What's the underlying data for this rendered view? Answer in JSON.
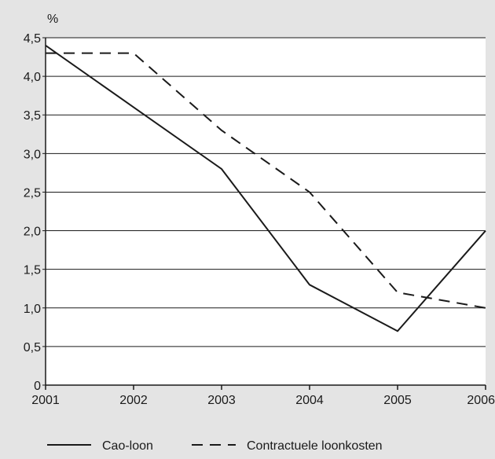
{
  "chart_data": {
    "type": "line",
    "title": "",
    "xlabel": "",
    "ylabel": "%",
    "x": [
      "2001",
      "2002",
      "2003",
      "2004",
      "2005",
      "2006"
    ],
    "ylim": [
      0,
      4.5
    ],
    "yticks": [
      0,
      0.5,
      1.0,
      1.5,
      2.0,
      2.5,
      3.0,
      3.5,
      4.0,
      4.5
    ],
    "ytick_labels": [
      "0",
      "0,5",
      "1,0",
      "1,5",
      "2,0",
      "2,5",
      "3,0",
      "3,5",
      "4,0",
      "4,5"
    ],
    "grid": "horizontal",
    "legend_position": "bottom",
    "series": [
      {
        "name": "Cao-loon",
        "values": [
          4.4,
          3.6,
          2.8,
          1.3,
          0.7,
          2.0
        ],
        "style": "solid",
        "color": "#1a1a1a"
      },
      {
        "name": "Contractuele loonkosten",
        "values": [
          4.3,
          4.3,
          3.3,
          2.5,
          1.2,
          1.0
        ],
        "style": "dashed",
        "color": "#1a1a1a"
      }
    ],
    "colors": {
      "background": "#e4e4e4",
      "plot_background": "#ffffff",
      "grid": "#1a1a1a",
      "axis": "#1a1a1a"
    }
  }
}
